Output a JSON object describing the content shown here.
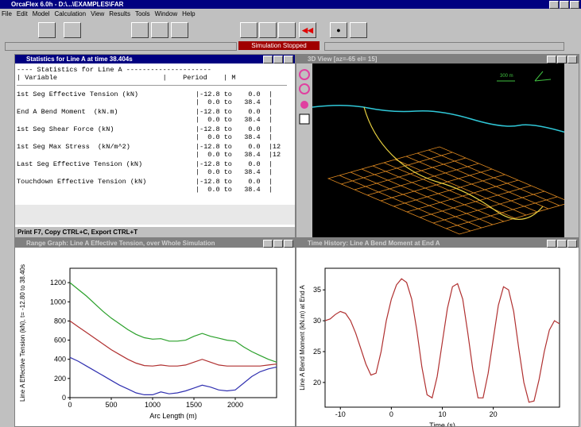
{
  "app": {
    "title": "OrcaFlex 6.0h - D:\\...\\EXAMPLES\\FAR",
    "menu": [
      "File",
      "Edit",
      "Model",
      "Calculation",
      "View",
      "Results",
      "Tools",
      "Window",
      "Help"
    ],
    "status": "Simulation Stopped"
  },
  "stats": {
    "title": "Statistics for Line A at time 38.404s",
    "heading": "---- Statistics for Line A ---------------------",
    "columns": "| Variable                          |    Period    | M",
    "rows": [
      {
        "variable": "1st Seg Effective Tension (kN)",
        "line1": "|-12.8 to    0.0  |",
        "line2": "|  0.0 to   38.4  |"
      },
      {
        "variable": "End A Bend Moment  (kN.m)",
        "line1": "|-12.8 to    0.0  |",
        "line2": "|  0.0 to   38.4  |"
      },
      {
        "variable": "1st Seg Shear Force (kN)",
        "line1": "|-12.8 to    0.0  |",
        "line2": "|  0.0 to   38.4  |"
      },
      {
        "variable": "1st Seg Max Stress  (kN/m^2)",
        "line1": "|-12.8 to    0.0  |12",
        "line2": "|  0.0 to   38.4  |12"
      },
      {
        "variable": "Last Seg Effective Tension (kN)",
        "line1": "|-12.8 to    0.0  |",
        "line2": "|  0.0 to   38.4  |"
      },
      {
        "variable": "Touchdown Effective Tension (kN)",
        "line1": "|-12.8 to    0.0  |",
        "line2": "|  0.0 to   38.4  |"
      }
    ],
    "footer": "Print F7, Copy CTRL+C, Export CTRL+T"
  },
  "view3d": {
    "title": "3D View  [az=-65  el= 15]",
    "scale": "300 m"
  },
  "chart_data": [
    {
      "type": "line",
      "window_title": "Range Graph: Line A Effective Tension, over Whole Simulation",
      "x_label": "Arc Length (m)",
      "y_label": "Line A Effective Tension (kN), t= -12.80 to 38.40s",
      "xlim": [
        0,
        2500
      ],
      "xticks": [
        0,
        500,
        1000,
        1500,
        2000
      ],
      "ylim": [
        0,
        1350
      ],
      "yticks": [
        0,
        200,
        400,
        600,
        800,
        1000,
        1200
      ],
      "x": [
        0,
        100,
        200,
        300,
        400,
        500,
        600,
        700,
        800,
        900,
        1000,
        1100,
        1200,
        1300,
        1400,
        1500,
        1600,
        1700,
        1800,
        1900,
        2000,
        2100,
        2200,
        2300,
        2400,
        2500
      ],
      "series": [
        {
          "color": "#2aa02a",
          "values": [
            1200,
            1130,
            1060,
            980,
            900,
            830,
            770,
            710,
            660,
            625,
            610,
            615,
            590,
            590,
            600,
            640,
            670,
            640,
            620,
            600,
            590,
            530,
            480,
            440,
            400,
            370
          ]
        },
        {
          "color": "#b03030",
          "values": [
            800,
            740,
            680,
            620,
            560,
            500,
            450,
            400,
            360,
            335,
            330,
            340,
            330,
            330,
            340,
            370,
            400,
            370,
            340,
            330,
            330,
            330,
            330,
            330,
            340,
            350
          ]
        },
        {
          "color": "#3030b0",
          "values": [
            420,
            380,
            330,
            280,
            230,
            180,
            130,
            90,
            50,
            30,
            30,
            60,
            40,
            50,
            70,
            100,
            130,
            110,
            80,
            70,
            80,
            150,
            220,
            270,
            300,
            320
          ]
        }
      ]
    },
    {
      "type": "line",
      "window_title": "Time History: Line A Bend Moment at End A",
      "x_label": "Time (s)",
      "y_label": "Line A Bend Moment (kN.m) at End A",
      "xlim": [
        -13,
        33
      ],
      "xticks": [
        -10,
        0,
        10,
        20
      ],
      "ylim": [
        16,
        38.5
      ],
      "yticks": [
        20,
        25,
        30,
        35
      ],
      "x": [
        -13,
        -12,
        -11,
        -10,
        -9,
        -8,
        -7,
        -6,
        -5,
        -4,
        -3,
        -2,
        -1,
        0,
        1,
        2,
        3,
        4,
        5,
        6,
        7,
        8,
        9,
        10,
        11,
        12,
        13,
        14,
        15,
        16,
        17,
        18,
        19,
        20,
        21,
        22,
        23,
        24,
        25,
        26,
        27,
        28,
        29,
        30,
        31,
        32,
        33
      ],
      "series": [
        {
          "color": "#b03030",
          "values": [
            30,
            30.3,
            31,
            31.5,
            31.2,
            30,
            28,
            25.5,
            23,
            21.2,
            21.5,
            25,
            30,
            33.5,
            35.8,
            36.8,
            36.2,
            33.5,
            28.5,
            22.5,
            18,
            17.5,
            21,
            26.5,
            32,
            35.5,
            36,
            33.5,
            28,
            22,
            17.5,
            17.5,
            21.5,
            27,
            32.5,
            35.5,
            35,
            31.5,
            25.5,
            20,
            16.8,
            17,
            20.5,
            25,
            28.5,
            30,
            29.5
          ]
        }
      ]
    }
  ]
}
